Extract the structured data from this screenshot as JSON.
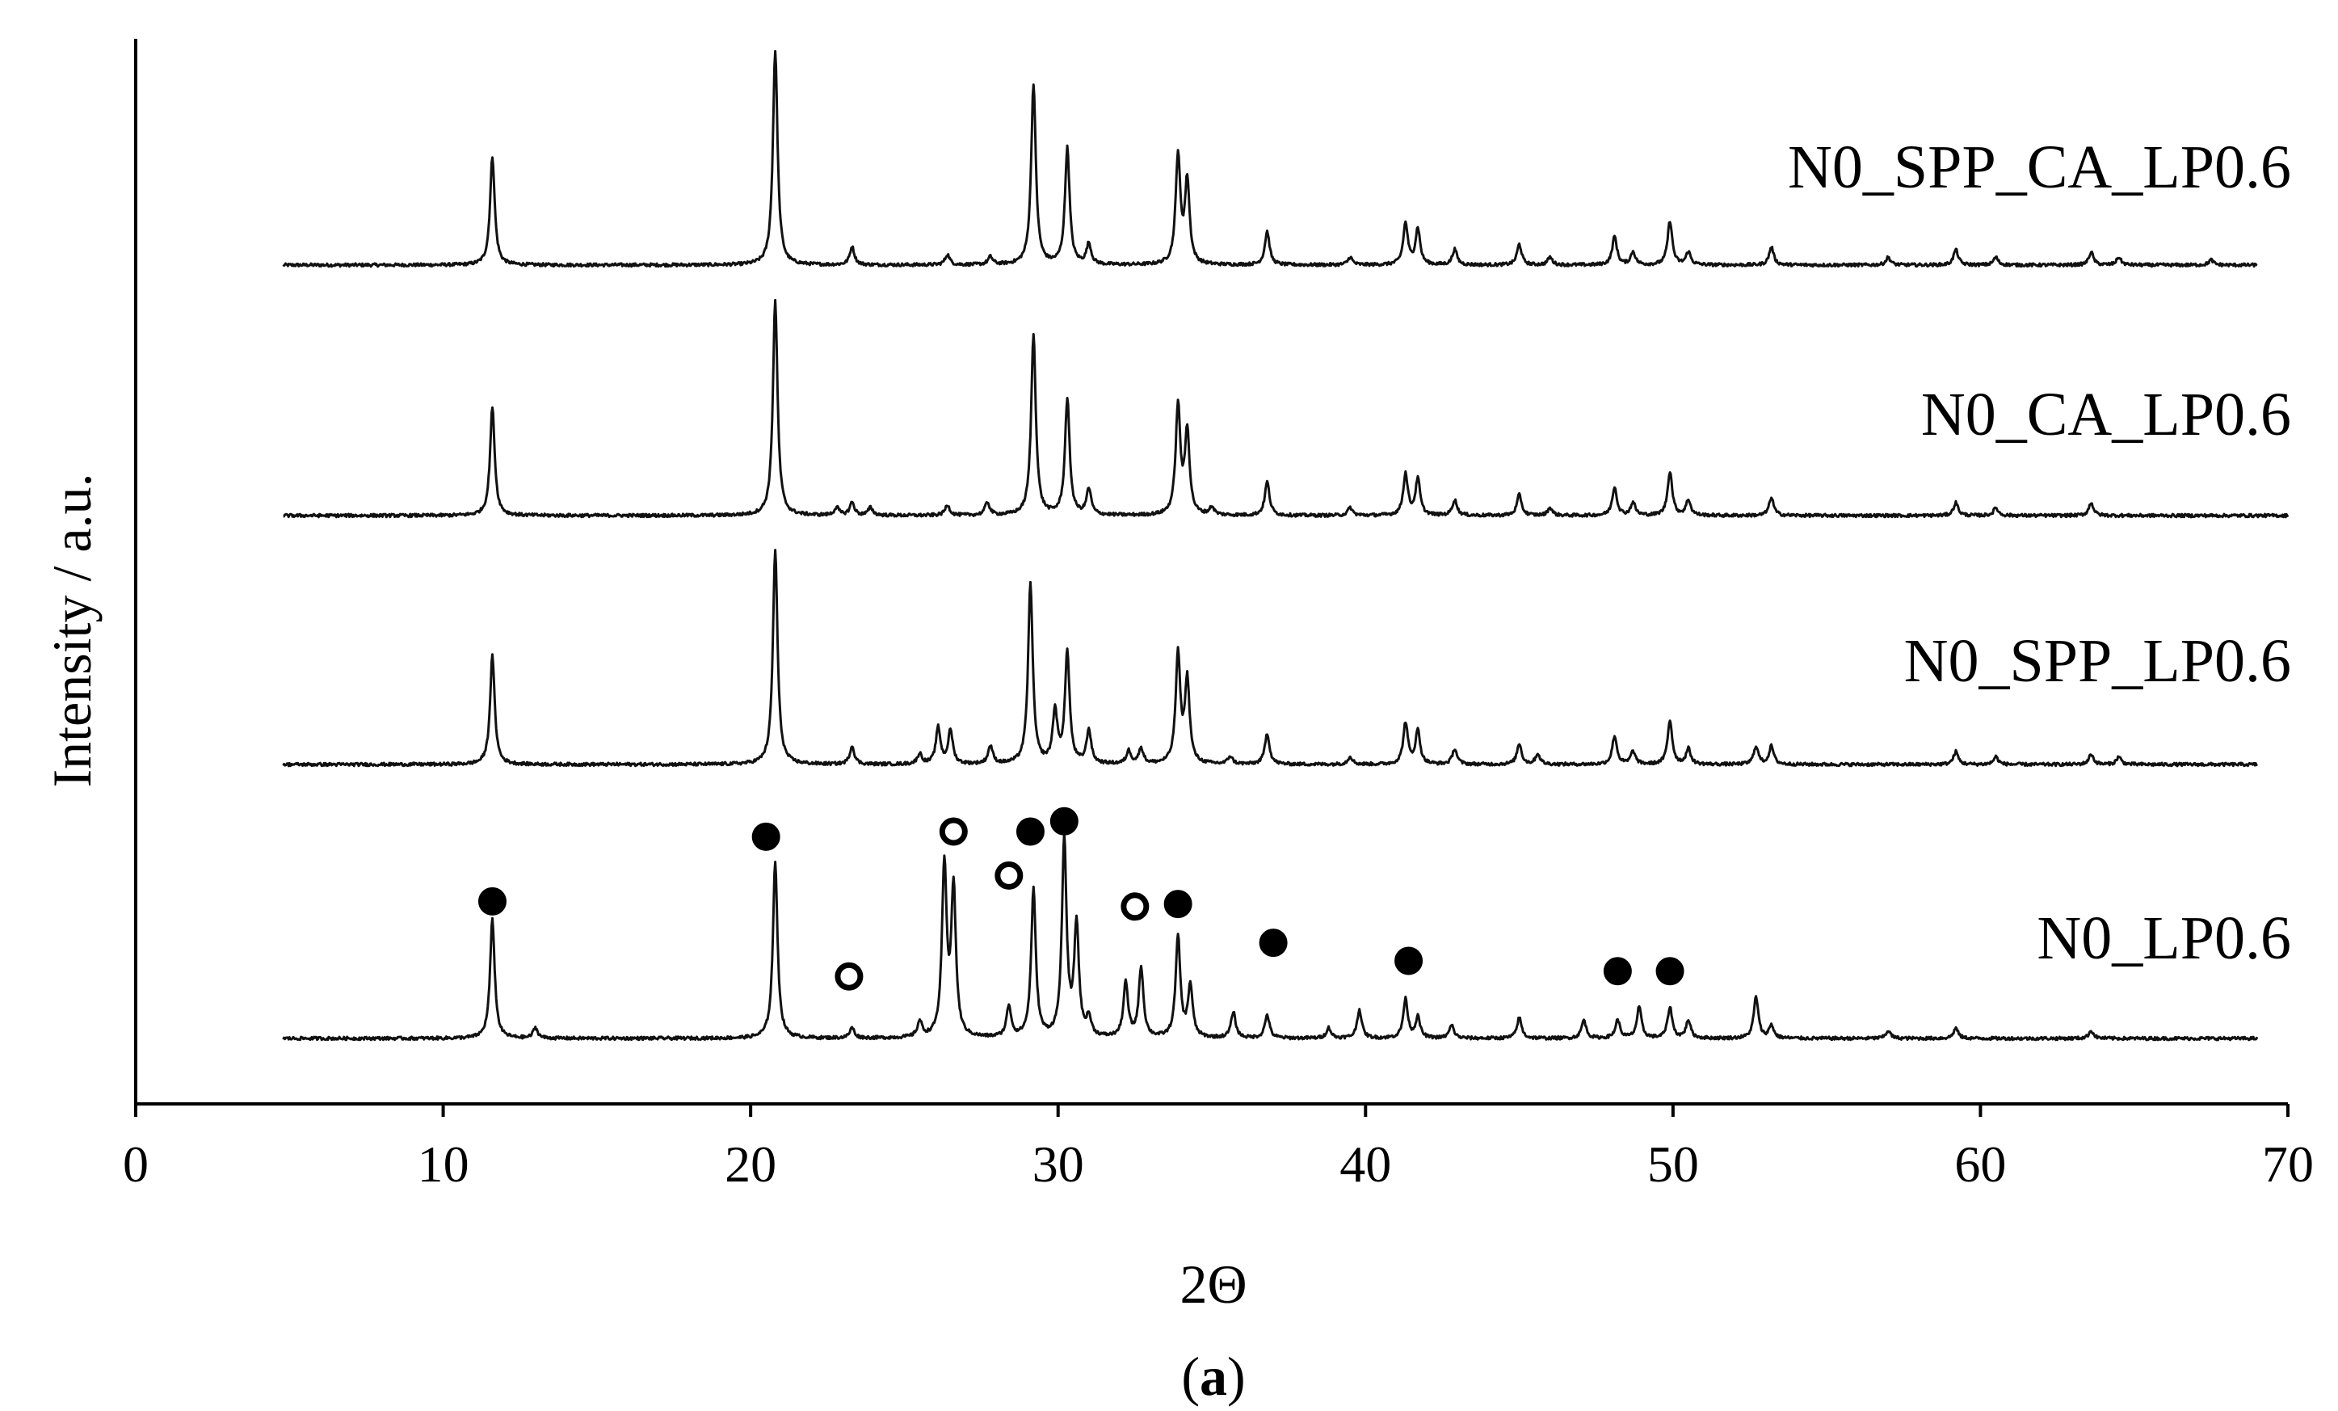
{
  "chart_data": {
    "type": "line",
    "xlabel": "2Θ",
    "ylabel": "Intensity / a.u.",
    "caption": {
      "prefix": "(",
      "letter": "a",
      "suffix": ")"
    },
    "xlim": [
      0,
      70
    ],
    "xticks": [
      0,
      10,
      20,
      30,
      40,
      50,
      60,
      70
    ],
    "x_range": [
      4.8,
      69.5
    ],
    "grid": false,
    "legend": "labels at right end of each trace",
    "series": [
      {
        "name": "N0_SPP_CA_LP0.6",
        "x_end": 69.0,
        "peaks": [
          [
            11.6,
            0.42
          ],
          [
            20.8,
            0.83
          ],
          [
            23.3,
            0.07
          ],
          [
            26.4,
            0.04
          ],
          [
            27.8,
            0.03
          ],
          [
            29.2,
            0.7
          ],
          [
            30.3,
            0.45
          ],
          [
            31.0,
            0.08
          ],
          [
            33.9,
            0.42
          ],
          [
            34.2,
            0.32
          ],
          [
            36.8,
            0.13
          ],
          [
            39.5,
            0.03
          ],
          [
            41.3,
            0.16
          ],
          [
            41.7,
            0.14
          ],
          [
            42.9,
            0.06
          ],
          [
            45.0,
            0.08
          ],
          [
            46.0,
            0.03
          ],
          [
            48.1,
            0.11
          ],
          [
            48.7,
            0.05
          ],
          [
            49.9,
            0.17
          ],
          [
            50.5,
            0.05
          ],
          [
            53.2,
            0.07
          ],
          [
            57.0,
            0.03
          ],
          [
            59.2,
            0.06
          ],
          [
            60.5,
            0.03
          ],
          [
            63.6,
            0.05
          ],
          [
            64.5,
            0.03
          ],
          [
            67.5,
            0.02
          ]
        ]
      },
      {
        "name": "N0_CA_LP0.6",
        "x_end": 70.0,
        "peaks": [
          [
            11.6,
            0.42
          ],
          [
            20.8,
            0.83
          ],
          [
            22.8,
            0.03
          ],
          [
            23.3,
            0.05
          ],
          [
            23.9,
            0.03
          ],
          [
            26.4,
            0.04
          ],
          [
            27.7,
            0.05
          ],
          [
            29.2,
            0.7
          ],
          [
            30.3,
            0.45
          ],
          [
            31.0,
            0.1
          ],
          [
            33.9,
            0.42
          ],
          [
            34.2,
            0.32
          ],
          [
            35.0,
            0.03
          ],
          [
            36.8,
            0.13
          ],
          [
            39.5,
            0.03
          ],
          [
            41.3,
            0.16
          ],
          [
            41.7,
            0.14
          ],
          [
            42.9,
            0.06
          ],
          [
            45.0,
            0.08
          ],
          [
            46.0,
            0.03
          ],
          [
            48.1,
            0.11
          ],
          [
            48.7,
            0.05
          ],
          [
            49.9,
            0.17
          ],
          [
            50.5,
            0.06
          ],
          [
            53.2,
            0.07
          ],
          [
            59.2,
            0.05
          ],
          [
            60.5,
            0.03
          ],
          [
            63.6,
            0.05
          ]
        ]
      },
      {
        "name": "N0_SPP_LP0.6",
        "x_end": 69.0,
        "peaks": [
          [
            11.6,
            0.42
          ],
          [
            20.8,
            0.83
          ],
          [
            23.3,
            0.07
          ],
          [
            25.5,
            0.04
          ],
          [
            26.1,
            0.14
          ],
          [
            26.5,
            0.13
          ],
          [
            27.8,
            0.07
          ],
          [
            29.1,
            0.7
          ],
          [
            29.9,
            0.2
          ],
          [
            30.3,
            0.43
          ],
          [
            31.0,
            0.13
          ],
          [
            32.3,
            0.05
          ],
          [
            32.7,
            0.06
          ],
          [
            33.9,
            0.42
          ],
          [
            34.2,
            0.32
          ],
          [
            35.6,
            0.03
          ],
          [
            36.8,
            0.12
          ],
          [
            39.5,
            0.03
          ],
          [
            41.3,
            0.16
          ],
          [
            41.7,
            0.13
          ],
          [
            42.9,
            0.06
          ],
          [
            45.0,
            0.08
          ],
          [
            45.6,
            0.04
          ],
          [
            48.1,
            0.11
          ],
          [
            48.7,
            0.05
          ],
          [
            49.9,
            0.17
          ],
          [
            50.5,
            0.06
          ],
          [
            52.7,
            0.07
          ],
          [
            53.2,
            0.07
          ],
          [
            59.2,
            0.05
          ],
          [
            60.5,
            0.03
          ],
          [
            63.6,
            0.04
          ],
          [
            64.5,
            0.03
          ]
        ]
      },
      {
        "name": "N0_LP0.6",
        "x_end": 69.0,
        "peaks": [
          [
            11.6,
            0.46
          ],
          [
            13.0,
            0.04
          ],
          [
            20.8,
            0.68
          ],
          [
            23.3,
            0.04
          ],
          [
            25.5,
            0.06
          ],
          [
            26.3,
            0.66
          ],
          [
            26.6,
            0.57
          ],
          [
            28.4,
            0.12
          ],
          [
            29.2,
            0.57
          ],
          [
            30.2,
            0.76
          ],
          [
            30.6,
            0.43
          ],
          [
            31.0,
            0.07
          ],
          [
            32.2,
            0.21
          ],
          [
            32.7,
            0.27
          ],
          [
            33.9,
            0.39
          ],
          [
            34.3,
            0.2
          ],
          [
            35.7,
            0.1
          ],
          [
            36.8,
            0.09
          ],
          [
            38.8,
            0.04
          ],
          [
            39.8,
            0.11
          ],
          [
            41.3,
            0.15
          ],
          [
            41.7,
            0.08
          ],
          [
            42.8,
            0.05
          ],
          [
            45.0,
            0.08
          ],
          [
            47.1,
            0.07
          ],
          [
            48.2,
            0.07
          ],
          [
            48.9,
            0.12
          ],
          [
            49.9,
            0.12
          ],
          [
            50.5,
            0.07
          ],
          [
            52.7,
            0.16
          ],
          [
            53.2,
            0.05
          ],
          [
            57.0,
            0.03
          ],
          [
            59.2,
            0.04
          ],
          [
            63.6,
            0.03
          ]
        ]
      }
    ],
    "phase_markers": [
      {
        "symbol": "filled",
        "positions": [
          [
            11.6,
            0.53
          ],
          [
            20.5,
            0.78
          ],
          [
            29.1,
            0.8
          ],
          [
            30.2,
            0.84
          ],
          [
            33.9,
            0.52
          ],
          [
            37.0,
            0.37
          ],
          [
            41.4,
            0.3
          ],
          [
            48.2,
            0.26
          ],
          [
            49.9,
            0.26
          ]
        ]
      },
      {
        "symbol": "open",
        "positions": [
          [
            23.2,
            0.24
          ],
          [
            26.6,
            0.8
          ],
          [
            28.4,
            0.63
          ],
          [
            32.5,
            0.51
          ]
        ]
      }
    ]
  }
}
